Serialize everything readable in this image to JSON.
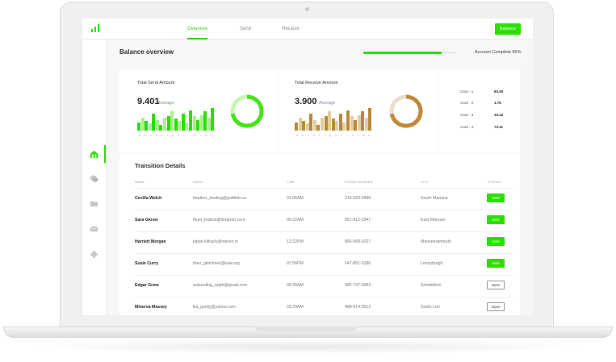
{
  "nav": {
    "tabs": [
      {
        "label": "Overview",
        "active": true
      },
      {
        "label": "Send",
        "active": false
      },
      {
        "label": "Receive",
        "active": false
      }
    ],
    "balance_button": "Balance"
  },
  "sidebar": {
    "icons": [
      "dashboard-icon",
      "chat-icon",
      "folder-icon",
      "mail-icon",
      "gear-icon"
    ],
    "active_index": 0
  },
  "header": {
    "title": "Balance overview",
    "progress_label": "Account Complete 85%",
    "progress": 0.85
  },
  "send_card": {
    "title": "Total Send Amount",
    "amount": "9.401",
    "avg_label": "Average",
    "bar_color_dark": "#2ae000",
    "bar_color_light": "#a9f08f",
    "donut_color": "#46e317",
    "donut_track": "#c8f7b5",
    "bars": [
      0.35,
      0.55,
      0.4,
      0.3,
      0.7,
      0.45,
      0.25,
      0.55,
      0.6,
      0.8,
      0.5,
      0.4,
      0.7,
      0.35,
      0.85,
      0.6,
      0.45,
      0.65,
      0.8,
      0.55,
      0.95
    ],
    "labels": [
      "a",
      "b",
      "c",
      "d",
      "e",
      "f",
      "g",
      "h",
      "i",
      "j",
      "k",
      "l",
      "m",
      "n"
    ]
  },
  "receive_card": {
    "title": "Total Receive Amount",
    "amount": "3.900",
    "avg_label": "Average",
    "bar_color_dark": "#b98a3a",
    "bar_color_light": "#e0cda2",
    "donut_color": "#c08a3b",
    "donut_track": "#eadfc8",
    "bars": [
      0.35,
      0.55,
      0.4,
      0.3,
      0.7,
      0.45,
      0.25,
      0.55,
      0.6,
      0.8,
      0.5,
      0.4,
      0.7,
      0.35,
      0.85,
      0.6,
      0.45,
      0.65,
      0.8,
      0.55,
      0.95
    ],
    "labels": [
      "a",
      "b",
      "c",
      "d",
      "e",
      "f",
      "g",
      "h",
      "i",
      "j",
      "k",
      "l",
      "m",
      "n"
    ]
  },
  "cards": [
    {
      "name": "Card - 1",
      "value": "83.00"
    },
    {
      "name": "Card - 2",
      "value": "1.76"
    },
    {
      "name": "Card - 3",
      "value": "33.42"
    },
    {
      "name": "Card - 4",
      "value": "73.11"
    }
  ],
  "table": {
    "title": "Transition Details",
    "headers": [
      "NAME",
      "EMAIL",
      "TIME",
      "PHONE NUMBER",
      "CITY",
      "STATUS"
    ],
    "rows": [
      {
        "name": "Cecilia Welch",
        "email": "heather_keeling@gottlieb.ca",
        "time": "01:06AM",
        "phone": "215-593-5846",
        "city": "South Mariane",
        "status": "Sent"
      },
      {
        "name": "Sara Glover",
        "email": "floyd_brakus@lindgren.com",
        "time": "00:22AM",
        "phone": "057-812-3947",
        "city": "East Maryam",
        "status": "Sent"
      },
      {
        "name": "Harriett Morgan",
        "email": "jabari.kilback@nelson.tv",
        "time": "12:22PM",
        "phone": "866-668-0327",
        "city": "Monserratmouth",
        "status": "Sent"
      },
      {
        "name": "Susie Curry",
        "email": "theo_gleichner@kaia.org",
        "time": "07:56PM",
        "phone": "647-851-5280",
        "city": "Lonnyburgh",
        "status": "Sent"
      },
      {
        "name": "Edgar Greer",
        "email": "ankunding_ralph@gmail.com",
        "time": "08:35AM",
        "phone": "985-747-0063",
        "city": "Schmittfurt",
        "status": "Open"
      },
      {
        "name": "Minerva Massey",
        "email": "lila_purdy@yahoo.com",
        "time": "03:24AM",
        "phone": "488-514-5012",
        "city": "South Lori",
        "status": "Open"
      }
    ]
  },
  "colors": {
    "accent": "#2ae000",
    "receive": "#b98a3a"
  }
}
